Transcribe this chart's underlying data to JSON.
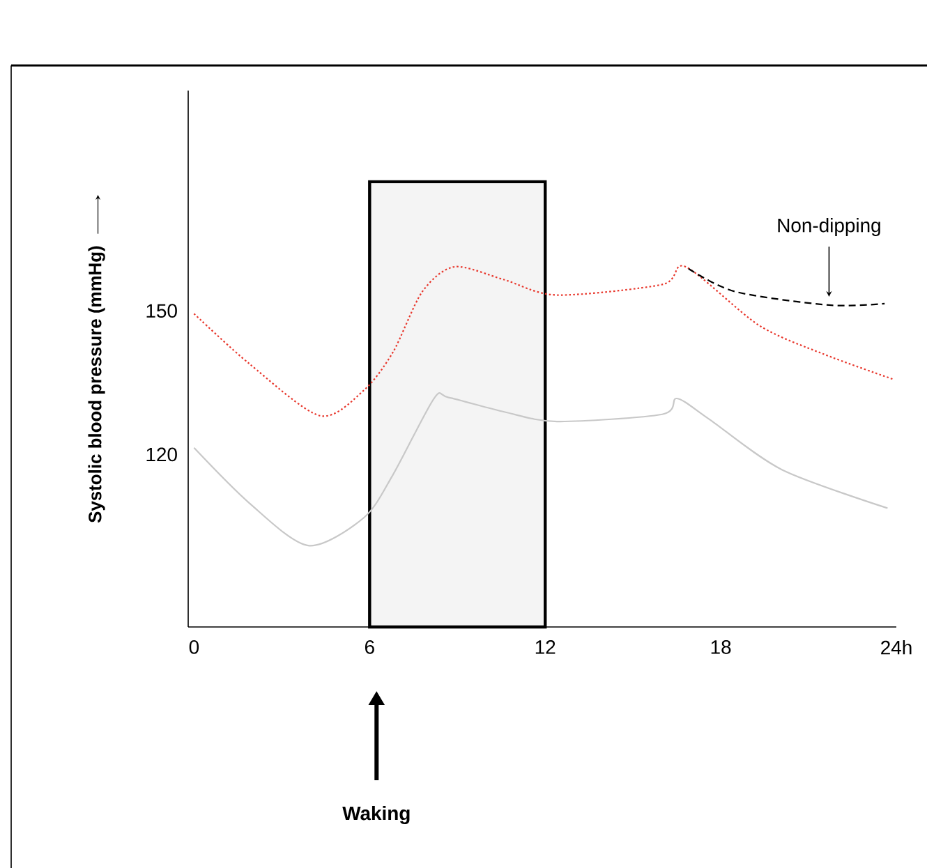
{
  "chart_data": {
    "type": "line",
    "ylabel": "Systolic blood pressure (mmHg)",
    "xlim": [
      -0.2,
      24
    ],
    "ylim": [
      84,
      196
    ],
    "xticks": [
      0,
      6,
      12,
      18,
      {
        "value": 24,
        "label": "24h"
      }
    ],
    "yticks": [
      120,
      150
    ],
    "series": [
      {
        "color": "#c8c8c8",
        "line_style": "solid",
        "x": [
          0,
          1.9,
          3.9,
          5.8,
          6.8,
          8.2,
          8.7,
          10.6,
          12.4,
          16.0,
          16.5,
          17.6,
          20.1,
          23.7
        ],
        "values": [
          121.4,
          109.8,
          101,
          106.8,
          115.8,
          131.7,
          131.9,
          128.9,
          126.9,
          128.4,
          131.7,
          127.4,
          116.8,
          108.8
        ]
      },
      {
        "color": "#e8372c",
        "line_style": "dotted",
        "x": [
          0,
          1.9,
          4.3,
          5.8,
          6.8,
          7.8,
          8.9,
          10.6,
          12.4,
          16.0,
          16.8,
          19.3,
          21.5,
          23.9
        ],
        "values": [
          149.4,
          138.9,
          128.1,
          133.4,
          141.4,
          154,
          159.2,
          156.5,
          153.3,
          155.5,
          159.2,
          147,
          141,
          135.7
        ]
      },
      {
        "name": "Non-dipping",
        "color": "#000000",
        "line_style": "dashed",
        "x": [
          16.9,
          18.5,
          21.7,
          23.6
        ],
        "values": [
          158.8,
          154,
          151.2,
          151.5
        ]
      }
    ],
    "bands": [
      {
        "axis": "x",
        "from": 6,
        "to": 12,
        "color": "#f4f4f4"
      }
    ],
    "annotations": [
      "Waking"
    ]
  }
}
